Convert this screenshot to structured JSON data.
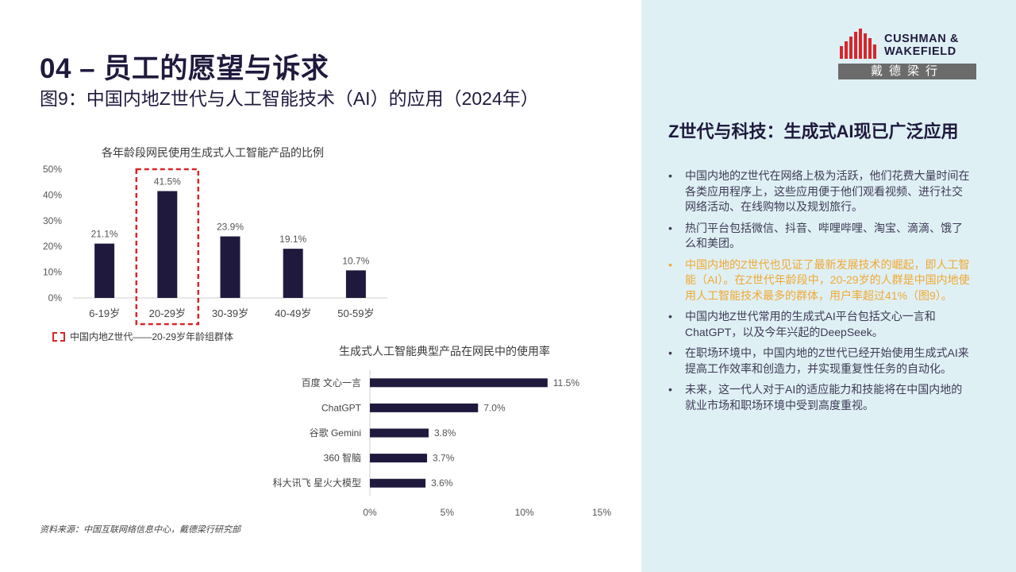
{
  "header": {
    "section_title": "04 – 员工的愿望与诉求",
    "figure_title": "图9：中国内地Z世代与人工智能技术（AI）的应用（2024年）"
  },
  "logo": {
    "name_line1": "CUSHMAN &",
    "name_line2": "WAKEFIELD",
    "name_cn": "戴德梁行"
  },
  "chart_data": [
    {
      "type": "bar",
      "title": "各年龄段网民使用生成式人工智能产品的比例",
      "categories": [
        "6-19岁",
        "20-29岁",
        "30-39岁",
        "40-49岁",
        "50-59岁"
      ],
      "values": [
        21.1,
        41.5,
        23.9,
        19.1,
        10.7
      ],
      "value_labels": [
        "21.1%",
        "41.5%",
        "23.9%",
        "19.1%",
        "10.7%"
      ],
      "ylim": [
        0,
        50
      ],
      "yticks": [
        "0%",
        "10%",
        "20%",
        "30%",
        "40%",
        "50%"
      ],
      "highlight_category": "20-29岁",
      "legend": "中国内地Z世代——20-29岁年龄组群体",
      "bar_color": "#1f1a3d",
      "highlight_color": "#d9252a"
    },
    {
      "type": "bar",
      "orientation": "horizontal",
      "title": "生成式人工智能典型产品在网民中的使用率",
      "categories": [
        "百度 文心一言",
        "ChatGPT",
        "谷歌 Gemini",
        "360 智脑",
        "科大讯飞 星火大模型"
      ],
      "values": [
        11.5,
        7.0,
        3.8,
        3.7,
        3.6
      ],
      "value_labels": [
        "11.5%",
        "7.0%",
        "3.8%",
        "3.7%",
        "3.6%"
      ],
      "xlim": [
        0,
        15
      ],
      "xticks": [
        "0%",
        "5%",
        "10%",
        "15%"
      ],
      "bar_color": "#1f1a3d"
    }
  ],
  "source": "资料来源：中国互联网络信息中心，戴德梁行研究部",
  "panel": {
    "title": "Z世代与科技：生成式AI现已广泛应用",
    "bullets": [
      "中国内地的Z世代在网络上极为活跃，他们花费大量时间在各类应用程序上，这些应用便于他们观看视频、进行社交网络活动、在线购物以及规划旅行。",
      "热门平台包括微信、抖音、哔哩哔哩、淘宝、滴滴、饿了么和美团。",
      "中国内地的Z世代也见证了最新发展技术的崛起，即人工智能（AI）。在Z世代年龄段中，20-29岁的人群是中国内地使用人工智能技术最多的群体，用户率超过41%（图9）。",
      "中国内地Z世代常用的生成式AI平台包括文心一言和ChatGPT，以及今年兴起的DeepSeek。",
      "在职场环境中，中国内地的Z世代已经开始使用生成式AI来提高工作效率和创造力，并实现重复性任务的自动化。",
      "未来，这一代人对于AI的适应能力和技能将在中国内地的就业市场和职场环境中受到高度重视。"
    ],
    "highlight_color": "#f0a830"
  },
  "colors": {
    "navy": "#1f1a3d",
    "right_panel_bg": "#dff0f5",
    "logo_red": "#d9252a"
  }
}
